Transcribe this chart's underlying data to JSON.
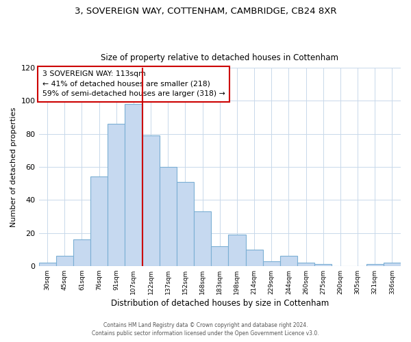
{
  "title1": "3, SOVEREIGN WAY, COTTENHAM, CAMBRIDGE, CB24 8XR",
  "title2": "Size of property relative to detached houses in Cottenham",
  "xlabel": "Distribution of detached houses by size in Cottenham",
  "ylabel": "Number of detached properties",
  "bin_labels": [
    "30sqm",
    "45sqm",
    "61sqm",
    "76sqm",
    "91sqm",
    "107sqm",
    "122sqm",
    "137sqm",
    "152sqm",
    "168sqm",
    "183sqm",
    "198sqm",
    "214sqm",
    "229sqm",
    "244sqm",
    "260sqm",
    "275sqm",
    "290sqm",
    "305sqm",
    "321sqm",
    "336sqm"
  ],
  "bar_heights": [
    2,
    6,
    16,
    54,
    86,
    98,
    79,
    60,
    51,
    33,
    12,
    19,
    10,
    3,
    6,
    2,
    1,
    0,
    0,
    1,
    2
  ],
  "bar_color": "#c6d9f0",
  "bar_edge_color": "#7bafd4",
  "vline_x": 5.5,
  "vline_color": "#cc0000",
  "ylim": [
    0,
    120
  ],
  "yticks": [
    0,
    20,
    40,
    60,
    80,
    100,
    120
  ],
  "annotation_line1": "3 SOVEREIGN WAY: 113sqm",
  "annotation_line2": "← 41% of detached houses are smaller (218)",
  "annotation_line3": "59% of semi-detached houses are larger (318) →",
  "annotation_box_color": "#ffffff",
  "annotation_box_edge": "#cc0000",
  "footer1": "Contains HM Land Registry data © Crown copyright and database right 2024.",
  "footer2": "Contains public sector information licensed under the Open Government Licence v3.0."
}
